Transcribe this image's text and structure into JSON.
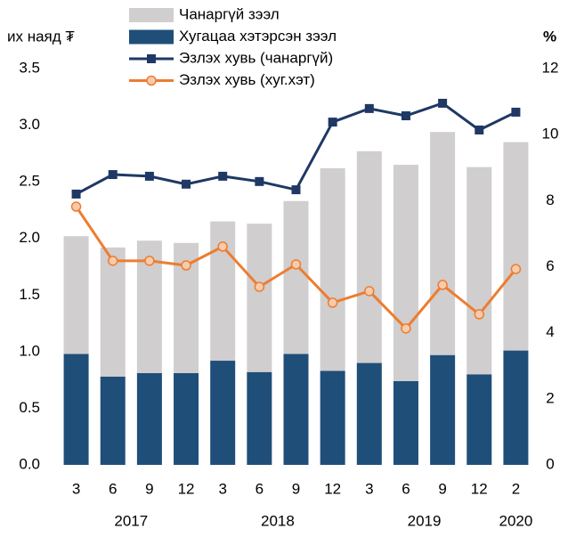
{
  "chart_data": {
    "type": "bar_line",
    "y_label": "их наяд ₮",
    "y2_label": "%",
    "categories": [
      "3",
      "6",
      "9",
      "12",
      "3",
      "6",
      "9",
      "12",
      "3",
      "6",
      "9",
      "12",
      "2"
    ],
    "years": [
      "2017",
      "2018",
      "2019",
      "2020"
    ],
    "series": [
      {
        "name": "Хугацаа хэтэрсэн зээл",
        "kind": "bar",
        "color": "#1f4e79",
        "values": [
          0.98,
          0.78,
          0.81,
          0.81,
          0.92,
          0.82,
          0.98,
          0.83,
          0.9,
          0.74,
          0.97,
          0.8,
          1.01
        ]
      },
      {
        "name": "Чанаргүй зээл",
        "kind": "bar",
        "color": "#d0cece",
        "values": [
          1.04,
          1.14,
          1.17,
          1.15,
          1.23,
          1.31,
          1.35,
          1.79,
          1.87,
          1.91,
          1.97,
          1.83,
          1.84
        ]
      },
      {
        "name": "Эзлэх хувь (чанаргүй)",
        "kind": "line",
        "axis": "y2",
        "color": "#1f3864",
        "marker": "square",
        "values": [
          8.2,
          8.79,
          8.74,
          8.5,
          8.74,
          8.58,
          8.33,
          10.38,
          10.79,
          10.57,
          10.95,
          10.14,
          10.68
        ]
      },
      {
        "name": "Эзлэх хувь (хуг.хэт)",
        "kind": "line",
        "axis": "y2",
        "color": "#ed7d31",
        "marker": "circle",
        "values": [
          7.82,
          6.18,
          6.18,
          6.04,
          6.61,
          5.39,
          6.07,
          4.91,
          5.26,
          4.13,
          5.45,
          4.56,
          5.93
        ]
      }
    ],
    "ylim": [
      0,
      3.5
    ],
    "yticks": [
      {
        "value": 0,
        "label": "0.0"
      },
      0.5,
      {
        "value": 1,
        "label": "1.0"
      },
      1.5,
      {
        "value": 2,
        "label": "2.0"
      },
      2.5,
      {
        "value": 3,
        "label": "3.0"
      },
      3.5
    ],
    "y2lim": [
      0,
      12
    ],
    "y2ticks": [
      0,
      2,
      4,
      6,
      8,
      10,
      12
    ]
  }
}
